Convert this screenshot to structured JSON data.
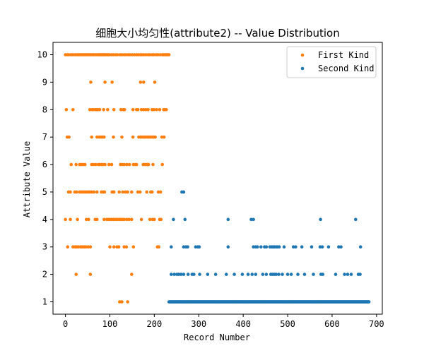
{
  "chart_data": {
    "type": "scatter",
    "title": "细胞大小均匀性(attribute2) -- Value Distribution",
    "xlabel": "Record Number",
    "ylabel": "Attribute Value",
    "xlim": [
      -28,
      713
    ],
    "ylim": [
      0.55,
      10.45
    ],
    "xticks": [
      0,
      100,
      200,
      300,
      400,
      500,
      600,
      700
    ],
    "yticks": [
      1,
      2,
      3,
      4,
      5,
      6,
      7,
      8,
      9,
      10
    ],
    "grid": false,
    "legend_position": "top-right",
    "series": [
      {
        "name": "First Kind",
        "color": "#ff7f0e",
        "points": [
          [
            0,
            10
          ],
          [
            4,
            10
          ],
          [
            7,
            10
          ],
          [
            12,
            10
          ],
          [
            15,
            10
          ],
          [
            19,
            10
          ],
          [
            23,
            10
          ],
          [
            27,
            10
          ],
          [
            29,
            10
          ],
          [
            32,
            10
          ],
          [
            35,
            10
          ],
          [
            37,
            10
          ],
          [
            40,
            10
          ],
          [
            42,
            10
          ],
          [
            45,
            10
          ],
          [
            48,
            10
          ],
          [
            50,
            10
          ],
          [
            53,
            10
          ],
          [
            56,
            10
          ],
          [
            59,
            10
          ],
          [
            62,
            10
          ],
          [
            64,
            10
          ],
          [
            68,
            10
          ],
          [
            71,
            10
          ],
          [
            74,
            10
          ],
          [
            76,
            10
          ],
          [
            78,
            10
          ],
          [
            80,
            10
          ],
          [
            82,
            10
          ],
          [
            84,
            10
          ],
          [
            86,
            10
          ],
          [
            88,
            10
          ],
          [
            90,
            10
          ],
          [
            92,
            10
          ],
          [
            95,
            10
          ],
          [
            97,
            10
          ],
          [
            99,
            10
          ],
          [
            104,
            10
          ],
          [
            108,
            10
          ],
          [
            113,
            10
          ],
          [
            117,
            10
          ],
          [
            123,
            10
          ],
          [
            127,
            10
          ],
          [
            132,
            10
          ],
          [
            136,
            10
          ],
          [
            141,
            10
          ],
          [
            145,
            10
          ],
          [
            150,
            10
          ],
          [
            155,
            10
          ],
          [
            160,
            10
          ],
          [
            164,
            10
          ],
          [
            169,
            10
          ],
          [
            172,
            10
          ],
          [
            176,
            10
          ],
          [
            181,
            10
          ],
          [
            186,
            10
          ],
          [
            190,
            10
          ],
          [
            195,
            10
          ],
          [
            199,
            10
          ],
          [
            204,
            10
          ],
          [
            208,
            10
          ],
          [
            213,
            10
          ],
          [
            218,
            10
          ],
          [
            220,
            10
          ],
          [
            222,
            10
          ],
          [
            225,
            10
          ],
          [
            227,
            10
          ],
          [
            229,
            10
          ],
          [
            231,
            10
          ],
          [
            233,
            10
          ],
          [
            57,
            9
          ],
          [
            89,
            9
          ],
          [
            105,
            9
          ],
          [
            169,
            9
          ],
          [
            176,
            9
          ],
          [
            201,
            9
          ],
          [
            2,
            8
          ],
          [
            17,
            8
          ],
          [
            55,
            8
          ],
          [
            60,
            8
          ],
          [
            63,
            8
          ],
          [
            67,
            8
          ],
          [
            70,
            8
          ],
          [
            73,
            8
          ],
          [
            77,
            8
          ],
          [
            86,
            8
          ],
          [
            95,
            8
          ],
          [
            109,
            8
          ],
          [
            125,
            8
          ],
          [
            130,
            8
          ],
          [
            133,
            8
          ],
          [
            152,
            8
          ],
          [
            160,
            8
          ],
          [
            163,
            8
          ],
          [
            171,
            8
          ],
          [
            176,
            8
          ],
          [
            181,
            8
          ],
          [
            186,
            8
          ],
          [
            195,
            8
          ],
          [
            199,
            8
          ],
          [
            205,
            8
          ],
          [
            212,
            8
          ],
          [
            221,
            8
          ],
          [
            224,
            8
          ],
          [
            227,
            8
          ],
          [
            4,
            7
          ],
          [
            8,
            7
          ],
          [
            59,
            7
          ],
          [
            71,
            7
          ],
          [
            76,
            7
          ],
          [
            80,
            7
          ],
          [
            84,
            7
          ],
          [
            87,
            7
          ],
          [
            108,
            7
          ],
          [
            127,
            7
          ],
          [
            152,
            7
          ],
          [
            165,
            7
          ],
          [
            169,
            7
          ],
          [
            173,
            7
          ],
          [
            177,
            7
          ],
          [
            180,
            7
          ],
          [
            184,
            7
          ],
          [
            188,
            7
          ],
          [
            192,
            7
          ],
          [
            196,
            7
          ],
          [
            199,
            7
          ],
          [
            202,
            7
          ],
          [
            217,
            7
          ],
          [
            222,
            7
          ],
          [
            13,
            6
          ],
          [
            24,
            6
          ],
          [
            32,
            6
          ],
          [
            34,
            6
          ],
          [
            37,
            6
          ],
          [
            40,
            6
          ],
          [
            44,
            6
          ],
          [
            59,
            6
          ],
          [
            63,
            6
          ],
          [
            68,
            6
          ],
          [
            74,
            6
          ],
          [
            77,
            6
          ],
          [
            81,
            6
          ],
          [
            85,
            6
          ],
          [
            89,
            6
          ],
          [
            98,
            6
          ],
          [
            104,
            6
          ],
          [
            124,
            6
          ],
          [
            128,
            6
          ],
          [
            132,
            6
          ],
          [
            138,
            6
          ],
          [
            144,
            6
          ],
          [
            153,
            6
          ],
          [
            157,
            6
          ],
          [
            160,
            6
          ],
          [
            175,
            6
          ],
          [
            178,
            6
          ],
          [
            181,
            6
          ],
          [
            184,
            6
          ],
          [
            187,
            6
          ],
          [
            197,
            6
          ],
          [
            218,
            6
          ],
          [
            7,
            5
          ],
          [
            11,
            5
          ],
          [
            21,
            5
          ],
          [
            25,
            5
          ],
          [
            32,
            5
          ],
          [
            36,
            5
          ],
          [
            40,
            5
          ],
          [
            44,
            5
          ],
          [
            48,
            5
          ],
          [
            52,
            5
          ],
          [
            55,
            5
          ],
          [
            59,
            5
          ],
          [
            64,
            5
          ],
          [
            71,
            5
          ],
          [
            81,
            5
          ],
          [
            85,
            5
          ],
          [
            88,
            5
          ],
          [
            105,
            5
          ],
          [
            109,
            5
          ],
          [
            121,
            5
          ],
          [
            129,
            5
          ],
          [
            135,
            5
          ],
          [
            140,
            5
          ],
          [
            149,
            5
          ],
          [
            163,
            5
          ],
          [
            168,
            5
          ],
          [
            183,
            5
          ],
          [
            192,
            5
          ],
          [
            195,
            5
          ],
          [
            209,
            5
          ],
          [
            214,
            5
          ],
          [
            0,
            4
          ],
          [
            11,
            4
          ],
          [
            27,
            4
          ],
          [
            47,
            4
          ],
          [
            52,
            4
          ],
          [
            67,
            4
          ],
          [
            71,
            4
          ],
          [
            87,
            4
          ],
          [
            93,
            4
          ],
          [
            97,
            4
          ],
          [
            100,
            4
          ],
          [
            104,
            4
          ],
          [
            108,
            4
          ],
          [
            110,
            4
          ],
          [
            114,
            4
          ],
          [
            117,
            4
          ],
          [
            121,
            4
          ],
          [
            124,
            4
          ],
          [
            128,
            4
          ],
          [
            132,
            4
          ],
          [
            138,
            4
          ],
          [
            143,
            4
          ],
          [
            149,
            4
          ],
          [
            171,
            4
          ],
          [
            190,
            4
          ],
          [
            196,
            4
          ],
          [
            200,
            4
          ],
          [
            212,
            4
          ],
          [
            215,
            4
          ],
          [
            5,
            3
          ],
          [
            17,
            3
          ],
          [
            22,
            3
          ],
          [
            25,
            3
          ],
          [
            29,
            3
          ],
          [
            34,
            3
          ],
          [
            38,
            3
          ],
          [
            42,
            3
          ],
          [
            46,
            3
          ],
          [
            51,
            3
          ],
          [
            56,
            3
          ],
          [
            100,
            3
          ],
          [
            109,
            3
          ],
          [
            116,
            3
          ],
          [
            120,
            3
          ],
          [
            132,
            3
          ],
          [
            137,
            3
          ],
          [
            153,
            3
          ],
          [
            207,
            3
          ],
          [
            210,
            3
          ],
          [
            24,
            2
          ],
          [
            56,
            2
          ],
          [
            149,
            2
          ],
          [
            122,
            1
          ],
          [
            127,
            1
          ],
          [
            140,
            1
          ]
        ]
      },
      {
        "name": "Second Kind",
        "color": "#1f77b4",
        "points": [
          [
            266,
            5
          ],
          [
            262,
            5
          ],
          [
            243,
            4
          ],
          [
            269,
            4
          ],
          [
            366,
            4
          ],
          [
            418,
            4
          ],
          [
            423,
            4
          ],
          [
            574,
            4
          ],
          [
            653,
            4
          ],
          [
            238,
            3
          ],
          [
            266,
            3
          ],
          [
            271,
            3
          ],
          [
            275,
            3
          ],
          [
            293,
            3
          ],
          [
            298,
            3
          ],
          [
            301,
            3
          ],
          [
            366,
            3
          ],
          [
            423,
            3
          ],
          [
            428,
            3
          ],
          [
            432,
            3
          ],
          [
            440,
            3
          ],
          [
            448,
            3
          ],
          [
            452,
            3
          ],
          [
            460,
            3
          ],
          [
            464,
            3
          ],
          [
            467,
            3
          ],
          [
            470,
            3
          ],
          [
            474,
            3
          ],
          [
            477,
            3
          ],
          [
            481,
            3
          ],
          [
            492,
            3
          ],
          [
            513,
            3
          ],
          [
            518,
            3
          ],
          [
            532,
            3
          ],
          [
            554,
            3
          ],
          [
            573,
            3
          ],
          [
            578,
            3
          ],
          [
            592,
            3
          ],
          [
            615,
            3
          ],
          [
            620,
            3
          ],
          [
            664,
            3
          ],
          [
            238,
            2
          ],
          [
            245,
            2
          ],
          [
            251,
            2
          ],
          [
            255,
            2
          ],
          [
            260,
            2
          ],
          [
            266,
            2
          ],
          [
            276,
            2
          ],
          [
            285,
            2
          ],
          [
            289,
            2
          ],
          [
            302,
            2
          ],
          [
            320,
            2
          ],
          [
            338,
            2
          ],
          [
            362,
            2
          ],
          [
            380,
            2
          ],
          [
            398,
            2
          ],
          [
            411,
            2
          ],
          [
            420,
            2
          ],
          [
            428,
            2
          ],
          [
            444,
            2
          ],
          [
            452,
            2
          ],
          [
            462,
            2
          ],
          [
            466,
            2
          ],
          [
            470,
            2
          ],
          [
            474,
            2
          ],
          [
            480,
            2
          ],
          [
            488,
            2
          ],
          [
            500,
            2
          ],
          [
            508,
            2
          ],
          [
            523,
            2
          ],
          [
            538,
            2
          ],
          [
            558,
            2
          ],
          [
            575,
            2
          ],
          [
            579,
            2
          ],
          [
            608,
            2
          ],
          [
            628,
            2
          ],
          [
            635,
            2
          ],
          [
            643,
            2
          ],
          [
            659,
            2
          ],
          [
            663,
            2
          ]
        ],
        "range_y1": [
          233,
          683
        ]
      }
    ]
  }
}
